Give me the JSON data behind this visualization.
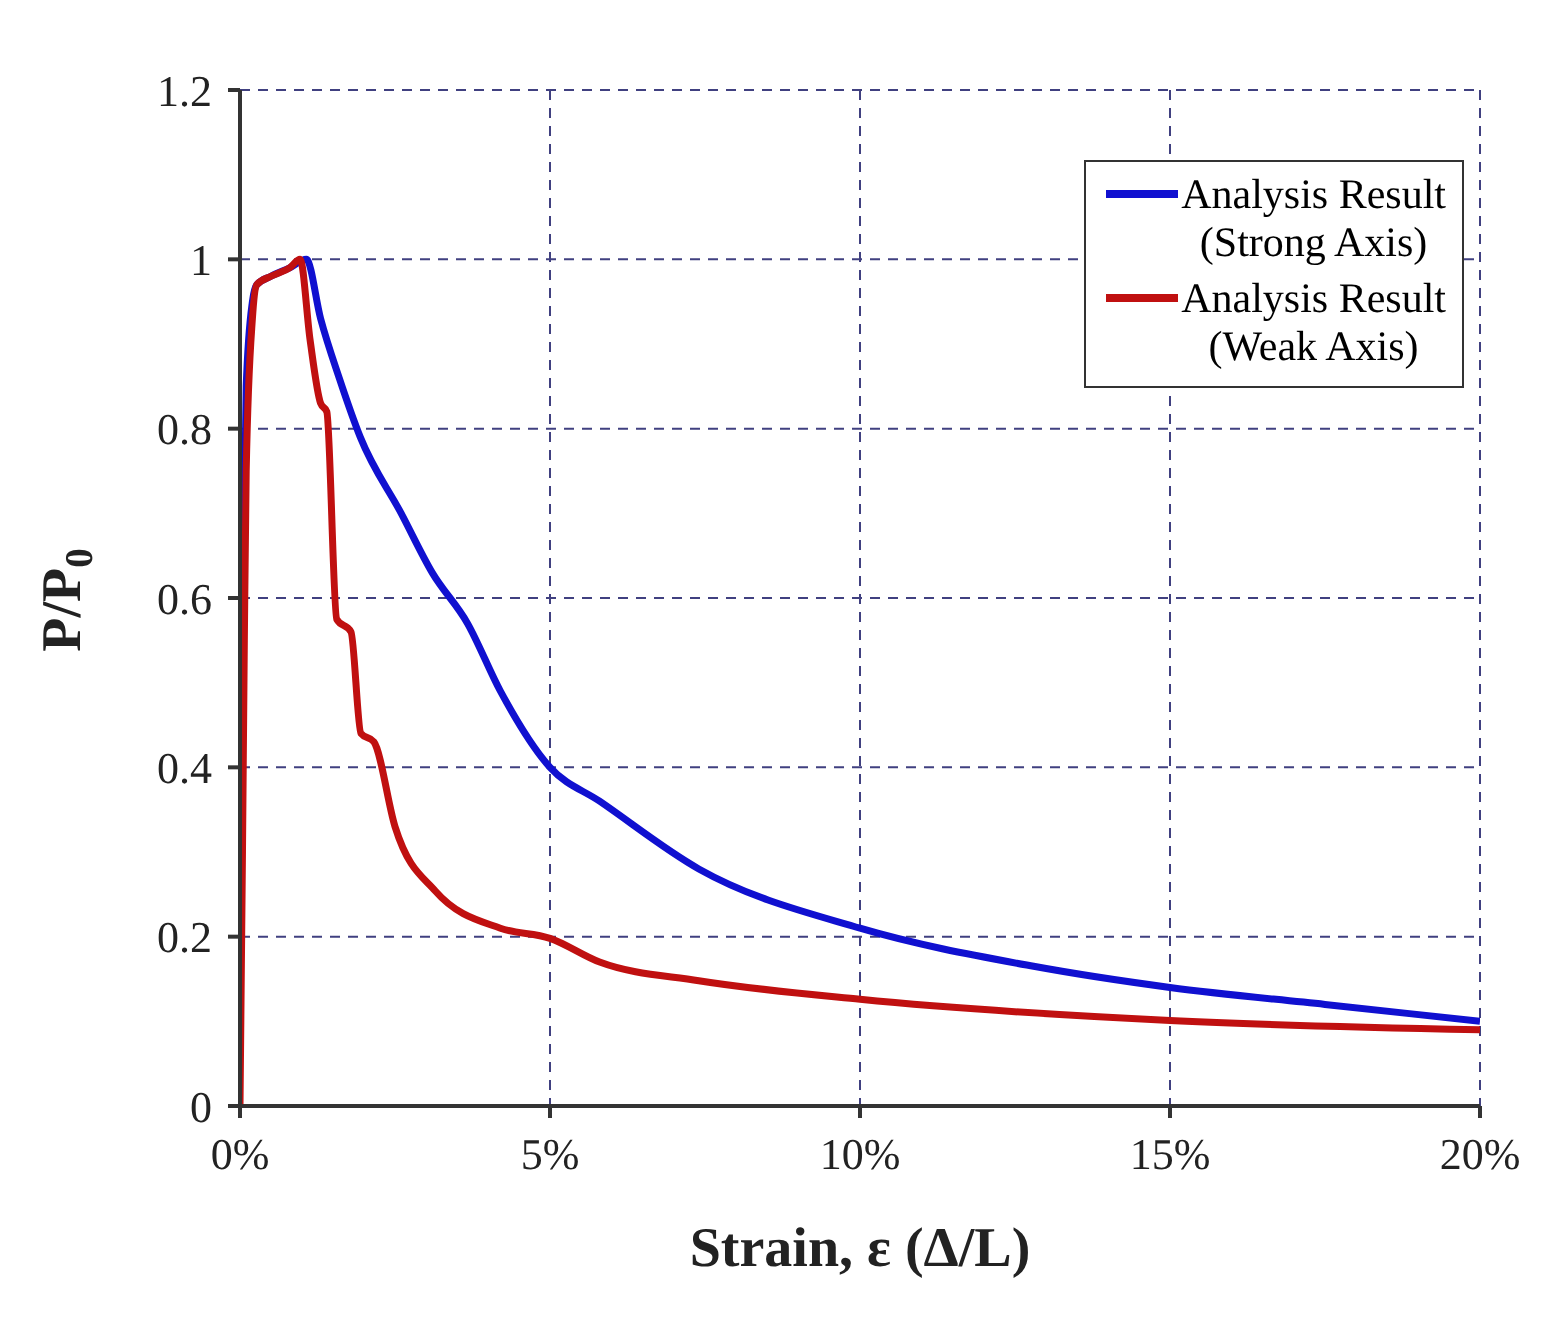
{
  "chart_data": {
    "type": "line",
    "xlabel": "Strain, ε (Δ/L)",
    "ylabel": "P/P$_{0}$",
    "xlim": [
      0,
      20
    ],
    "xticks": [
      {
        "value": 0,
        "label": "0%"
      },
      {
        "value": 5,
        "label": "5%"
      },
      {
        "value": 10,
        "label": "10%"
      },
      {
        "value": 15,
        "label": "15%"
      },
      {
        "value": 20,
        "label": "20%"
      }
    ],
    "ylim": [
      0,
      1.2
    ],
    "yticks": [
      0,
      0.2,
      0.4,
      0.6,
      0.8,
      1,
      1.2
    ],
    "grid": true,
    "legend": "top right",
    "marker": "none",
    "line_style": "solid",
    "series": [
      {
        "name": "Analysis Result (Strong Axis)",
        "color": "#1010d0",
        "x": [
          0.05,
          0.1,
          0.2,
          0.27,
          0.5,
          0.8,
          1.07,
          1.3,
          1.6,
          1.94,
          2.6,
          3.1,
          3.67,
          4.2,
          5,
          5.8,
          7.4,
          10,
          12.8,
          15,
          17.5,
          20
        ],
        "values": [
          0.6,
          0.85,
          0.95,
          0.97,
          0.98,
          0.99,
          1.0,
          0.93,
          0.86,
          0.79,
          0.7,
          0.63,
          0.57,
          0.49,
          0.4,
          0.36,
          0.28,
          0.21,
          0.165,
          0.14,
          0.12,
          0.1
        ]
      },
      {
        "name": "Analysis Result (Weak Axis)",
        "color": "#c01010",
        "x": [
          0,
          0.04,
          0.07,
          0.1,
          0.2,
          0.27,
          0.5,
          0.8,
          0.97,
          1.13,
          1.3,
          1.4,
          1.56,
          1.79,
          1.95,
          2.16,
          2.5,
          3.15,
          4.2,
          5,
          5.8,
          7.4,
          10,
          15,
          20
        ],
        "values": [
          0,
          0.3,
          0.55,
          0.75,
          0.93,
          0.97,
          0.98,
          0.99,
          1.0,
          0.905,
          0.83,
          0.82,
          0.575,
          0.56,
          0.44,
          0.43,
          0.33,
          0.254,
          0.21,
          0.198,
          0.17,
          0.148,
          0.126,
          0.101,
          0.09
        ]
      }
    ]
  }
}
